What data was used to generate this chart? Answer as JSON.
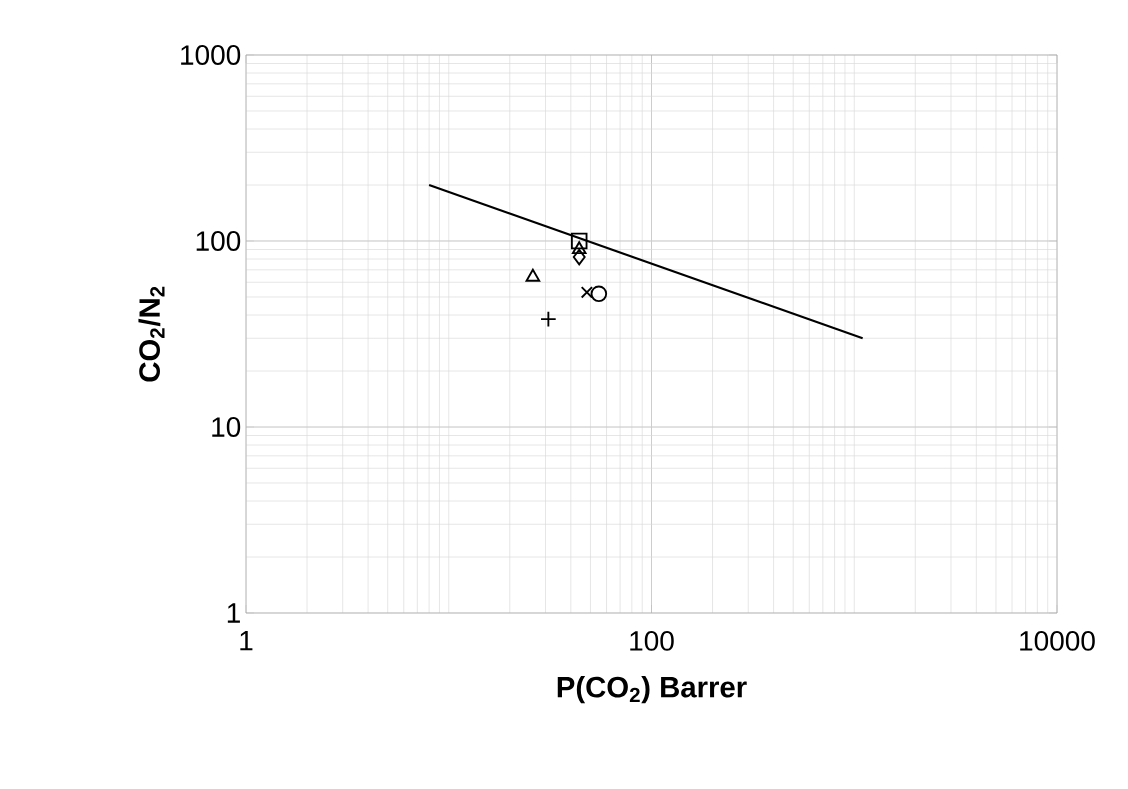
{
  "chart_data": {
    "type": "scatter",
    "xlabel": "P(CO$_{2}$) Barrer",
    "ylabel": "CO$_{2}$/N$_{2}$",
    "log": "xy",
    "grid": true,
    "xlim": [
      1,
      10000
    ],
    "ylim": [
      1,
      1000
    ],
    "xticks": [
      1,
      100,
      10000
    ],
    "yticks": [
      1,
      10,
      100,
      1000
    ],
    "series": [
      {
        "type": "line",
        "color": "#000000",
        "marker": "none",
        "line_style": "solid",
        "x": [
          8,
          1100
        ],
        "values": [
          200,
          30
        ]
      },
      {
        "color": "#000000",
        "marker": "square",
        "x": [
          44
        ],
        "values": [
          100
        ]
      },
      {
        "color": "#000000",
        "marker": "triangle",
        "x": [
          44
        ],
        "values": [
          90
        ]
      },
      {
        "color": "#000000",
        "marker": "diamond",
        "x": [
          44
        ],
        "values": [
          82
        ]
      },
      {
        "color": "#000000",
        "marker": "triangle",
        "x": [
          26
        ],
        "values": [
          64
        ]
      },
      {
        "color": "#000000",
        "marker": "plus",
        "x": [
          31
        ],
        "values": [
          38
        ]
      },
      {
        "color": "#000000",
        "marker": "cross",
        "x": [
          48
        ],
        "values": [
          53
        ]
      },
      {
        "color": "#000000",
        "marker": "circle",
        "x": [
          55
        ],
        "values": [
          52
        ]
      }
    ]
  }
}
